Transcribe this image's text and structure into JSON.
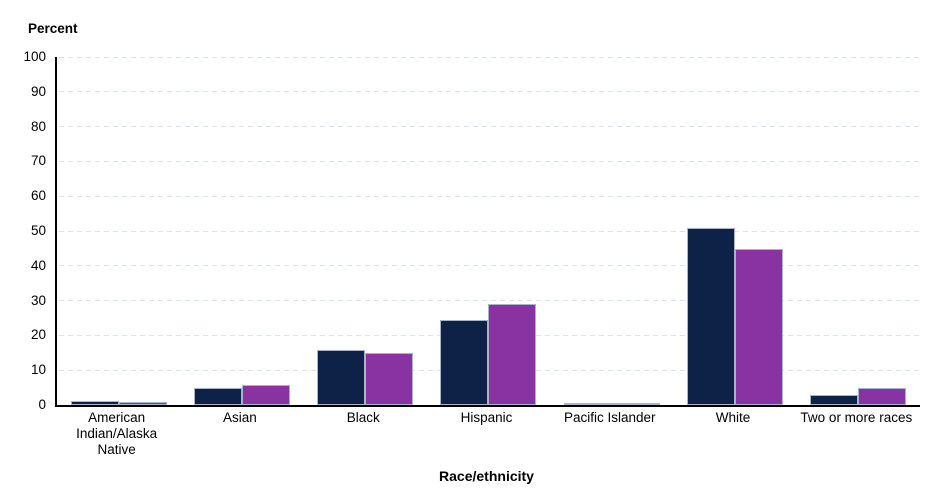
{
  "chart_data": {
    "type": "bar",
    "title": "",
    "ylabel": "Percent",
    "xlabel": "Race/ethnicity",
    "ylim": [
      0,
      100
    ],
    "yticks": [
      0,
      10,
      20,
      30,
      40,
      50,
      60,
      70,
      80,
      90,
      100
    ],
    "grid": "horizontal-dashed",
    "legend_position": "none",
    "categories": [
      "American Indian/Alaska Native",
      "Asian",
      "Black",
      "Hispanic",
      "Pacific Islander",
      "White",
      "Two or more races"
    ],
    "series": [
      {
        "name": "navy-series",
        "color": "#0e2248",
        "values": [
          1.2,
          4.8,
          15.8,
          24.3,
          0.4,
          51.0,
          2.9
        ]
      },
      {
        "name": "purple-series",
        "color": "#8833a1",
        "values": [
          0.9,
          5.7,
          15.0,
          29.0,
          0.3,
          44.8,
          5.0
        ]
      }
    ],
    "colors": {
      "grid": "#d9e2ee",
      "axis": "#000000",
      "bar_border": "#a9b4c8"
    }
  }
}
